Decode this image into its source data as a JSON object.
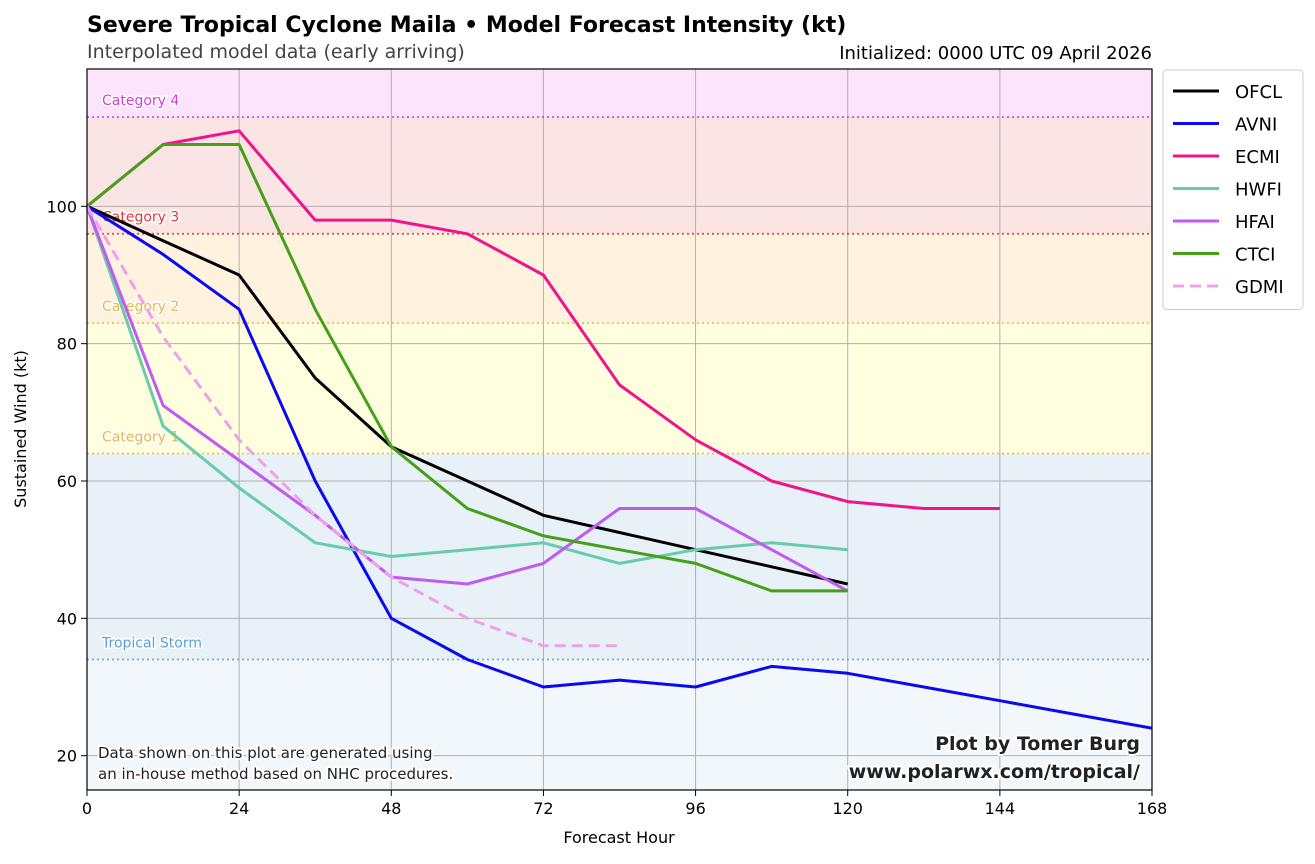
{
  "chart_data": {
    "type": "line",
    "title": "Severe Tropical Cyclone Maila • Model Forecast Intensity (kt)",
    "subtitle": "Interpolated model data (early arriving)",
    "initialized": "Initialized: 0000 UTC 09 April 2026",
    "xlabel": "Forecast Hour",
    "ylabel": "Sustained Wind (kt)",
    "xlim": [
      0,
      168
    ],
    "ylim": [
      15,
      120
    ],
    "xticks": [
      0,
      24,
      48,
      72,
      96,
      120,
      144,
      168
    ],
    "yticks": [
      20,
      40,
      60,
      80,
      100
    ],
    "grid": true,
    "legend_position": "outside-right-top",
    "categories_bands": [
      {
        "name": "Tropical Storm",
        "threshold": 34,
        "color": "#5b9fd4",
        "label_y": 36.5
      },
      {
        "name": "Category 1",
        "threshold": 64,
        "color": "#e8b84a",
        "label_y": 66.5
      },
      {
        "name": "Category 2",
        "threshold": 83,
        "color": "#e8b84a",
        "label_y": 85.5
      },
      {
        "name": "Category 3",
        "threshold": 96,
        "color": "#d63c3c",
        "label_y": 98.5
      },
      {
        "name": "Category 4",
        "threshold": 113,
        "color": "#d63cd6",
        "label_y": 115.5
      }
    ],
    "band_fills": [
      {
        "from": 15,
        "to": 34,
        "color": "#f2f7fb"
      },
      {
        "from": 34,
        "to": 64,
        "color": "#e8f0f8"
      },
      {
        "from": 64,
        "to": 83,
        "color": "#ffffe0"
      },
      {
        "from": 83,
        "to": 96,
        "color": "#fff3e0"
      },
      {
        "from": 96,
        "to": 113,
        "color": "#fbe4e4"
      },
      {
        "from": 113,
        "to": 120,
        "color": "#fde4fd"
      }
    ],
    "series": [
      {
        "name": "OFCL",
        "color": "#000000",
        "dashed": false,
        "points": [
          [
            0,
            100
          ],
          [
            12,
            95
          ],
          [
            24,
            90
          ],
          [
            36,
            75
          ],
          [
            48,
            65
          ],
          [
            60,
            60
          ],
          [
            72,
            55
          ],
          [
            84,
            52.5
          ],
          [
            96,
            50
          ],
          [
            108,
            47.5
          ],
          [
            120,
            45
          ]
        ]
      },
      {
        "name": "AVNI",
        "color": "#0a0af0",
        "dashed": false,
        "points": [
          [
            0,
            100
          ],
          [
            12,
            93
          ],
          [
            24,
            85
          ],
          [
            36,
            60
          ],
          [
            48,
            40
          ],
          [
            60,
            34
          ],
          [
            72,
            30
          ],
          [
            84,
            31
          ],
          [
            96,
            30
          ],
          [
            108,
            33
          ],
          [
            120,
            32
          ],
          [
            132,
            30
          ],
          [
            144,
            28
          ],
          [
            156,
            26
          ],
          [
            168,
            24
          ]
        ]
      },
      {
        "name": "ECMI",
        "color": "#f0148c",
        "dashed": false,
        "points": [
          [
            0,
            100
          ],
          [
            12,
            109
          ],
          [
            24,
            111
          ],
          [
            36,
            98
          ],
          [
            48,
            98
          ],
          [
            60,
            96
          ],
          [
            72,
            90
          ],
          [
            84,
            74
          ],
          [
            96,
            66
          ],
          [
            108,
            60
          ],
          [
            120,
            57
          ],
          [
            132,
            56
          ],
          [
            144,
            56
          ]
        ]
      },
      {
        "name": "HWFI",
        "color": "#66ccaa",
        "dashed": false,
        "points": [
          [
            0,
            100
          ],
          [
            12,
            68
          ],
          [
            24,
            59
          ],
          [
            36,
            51
          ],
          [
            48,
            49
          ],
          [
            60,
            50
          ],
          [
            72,
            51
          ],
          [
            84,
            48
          ],
          [
            96,
            50
          ],
          [
            108,
            51
          ],
          [
            120,
            50
          ]
        ]
      },
      {
        "name": "HFAI",
        "color": "#c05af0",
        "dashed": false,
        "points": [
          [
            0,
            100
          ],
          [
            12,
            71
          ],
          [
            24,
            63
          ],
          [
            36,
            55
          ],
          [
            48,
            46
          ],
          [
            60,
            45
          ],
          [
            72,
            48
          ],
          [
            84,
            56
          ],
          [
            96,
            56
          ],
          [
            108,
            50
          ],
          [
            120,
            44
          ]
        ]
      },
      {
        "name": "CTCI",
        "color": "#44a016",
        "dashed": false,
        "points": [
          [
            0,
            100
          ],
          [
            12,
            109
          ],
          [
            24,
            109
          ],
          [
            36,
            85
          ],
          [
            48,
            65
          ],
          [
            60,
            56
          ],
          [
            72,
            52
          ],
          [
            84,
            50
          ],
          [
            96,
            48
          ],
          [
            108,
            44
          ],
          [
            120,
            44
          ]
        ]
      },
      {
        "name": "GDMI",
        "color": "#f0a0e8",
        "dashed": true,
        "points": [
          [
            0,
            100
          ],
          [
            12,
            81
          ],
          [
            24,
            66
          ],
          [
            36,
            55
          ],
          [
            48,
            46
          ],
          [
            60,
            40
          ],
          [
            72,
            36
          ],
          [
            84,
            36
          ]
        ]
      }
    ]
  },
  "credit": {
    "line1": "Plot by Tomer Burg",
    "line2": "www.polarwx.com/tropical/"
  },
  "note": {
    "line1": "Data shown on this plot are generated using",
    "line2": "an in-house method based on NHC procedures."
  }
}
